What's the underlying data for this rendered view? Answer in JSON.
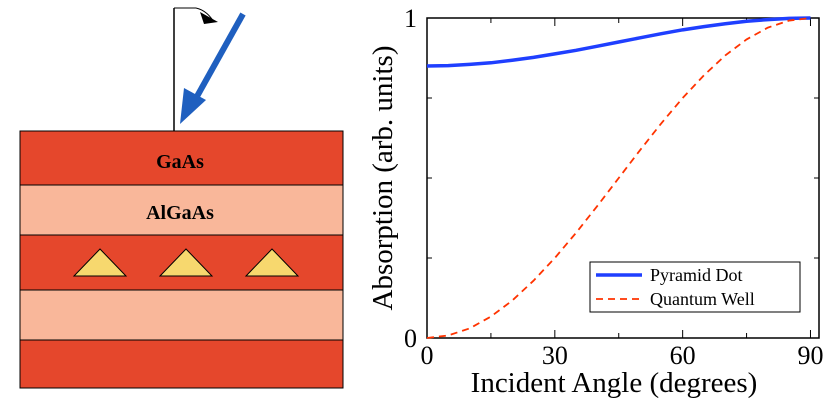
{
  "diagram": {
    "layers": [
      "GaAs",
      "AlGaAs"
    ]
  },
  "chart_data": {
    "type": "line",
    "xlabel": "Incident Angle (degrees)",
    "ylabel": "Absorption (arb. units)",
    "x": [
      0,
      5,
      10,
      15,
      20,
      25,
      30,
      35,
      40,
      45,
      50,
      55,
      60,
      65,
      70,
      75,
      80,
      85,
      90
    ],
    "series": [
      {
        "name": "Pyramid Dot",
        "color": "#1f3fff",
        "dash": false,
        "values": [
          0.85,
          0.851,
          0.855,
          0.86,
          0.868,
          0.877,
          0.888,
          0.899,
          0.912,
          0.925,
          0.938,
          0.951,
          0.963,
          0.973,
          0.982,
          0.99,
          0.995,
          0.999,
          1.0
        ]
      },
      {
        "name": "Quantum Well",
        "color": "#ff3300",
        "dash": true,
        "values": [
          0,
          0.008,
          0.03,
          0.067,
          0.117,
          0.179,
          0.25,
          0.329,
          0.413,
          0.5,
          0.587,
          0.671,
          0.75,
          0.821,
          0.883,
          0.933,
          0.97,
          0.992,
          1.0
        ]
      }
    ],
    "xlim": [
      0,
      92
    ],
    "ylim": [
      0,
      1
    ],
    "xticks": [
      0,
      30,
      60,
      90
    ],
    "yticks": [
      0,
      1
    ],
    "xminorticks": [
      15,
      45,
      75
    ],
    "yminorticks": [
      0.25,
      0.5,
      0.75
    ],
    "legend": "lower right"
  }
}
